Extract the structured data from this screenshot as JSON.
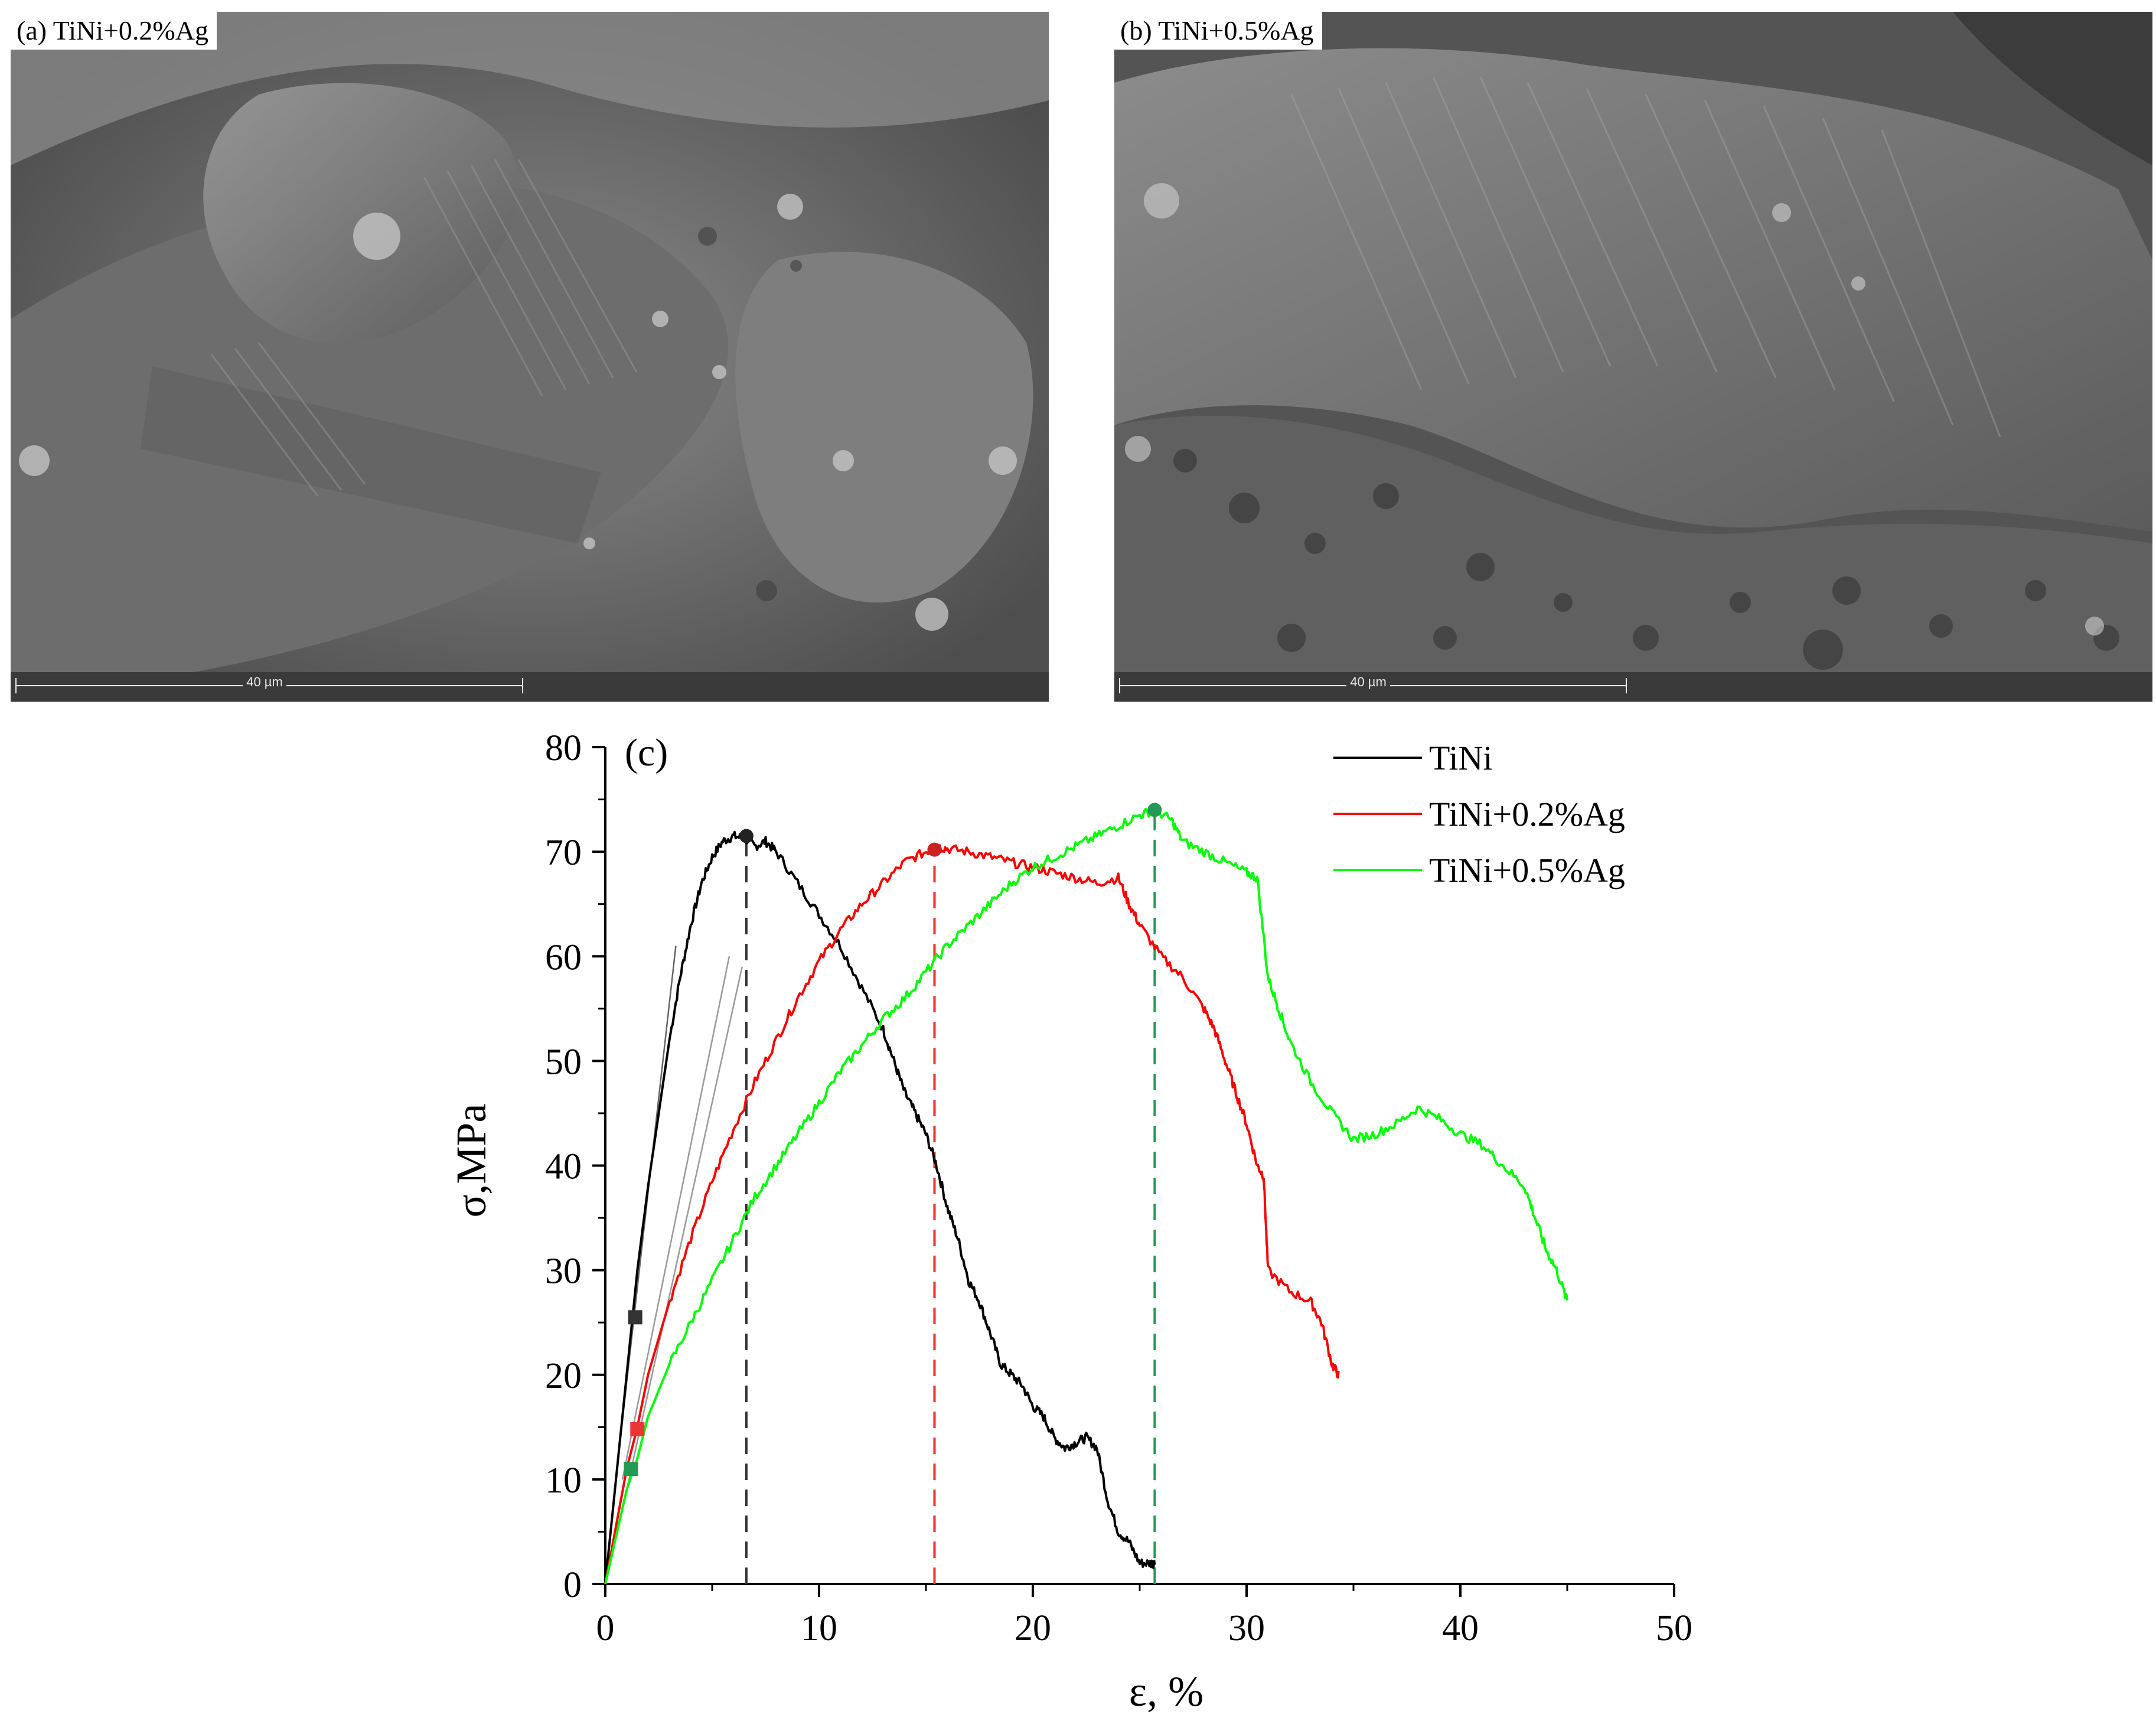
{
  "figure": {
    "panel_a": {
      "label": "(a) TiNi+0.2%Ag",
      "scale_text": "40 µm"
    },
    "panel_b": {
      "label": "(b) TiNi+0.5%Ag",
      "scale_text": "40 µm"
    }
  },
  "chart_data": {
    "type": "line",
    "panel_label": "(c)",
    "xlabel": "ε, %",
    "ylabel": "σ,MPa",
    "xlim": [
      0,
      50
    ],
    "ylim": [
      0,
      80
    ],
    "xticks": [
      0,
      10,
      20,
      30,
      40,
      50
    ],
    "yticks": [
      0,
      10,
      20,
      30,
      40,
      50,
      60,
      70,
      80
    ],
    "legend_position": "top-right",
    "series": [
      {
        "name": "TiNi",
        "color": "#000000",
        "x": [
          0,
          0.5,
          1,
          1.5,
          2,
          2.5,
          3,
          3.5,
          4,
          4.5,
          5,
          5.5,
          6,
          6.5,
          7,
          7.5,
          8,
          9,
          10,
          11,
          12,
          13,
          13.5,
          14,
          14.5,
          15,
          15.5,
          16,
          16.5,
          17,
          17.5,
          18,
          18.5,
          19,
          19.5,
          20,
          20.5,
          21,
          21.5,
          22,
          22.5,
          23,
          23.5,
          24,
          24.5,
          25,
          25.5,
          25.7
        ],
        "y": [
          0,
          10,
          20,
          30,
          38,
          45,
          52,
          58,
          63,
          67,
          69.5,
          71,
          71.5,
          71.3,
          70.5,
          71,
          70,
          67,
          64,
          61,
          57,
          53,
          50,
          47,
          45,
          43,
          40,
          36,
          33,
          29,
          27,
          24,
          21,
          20,
          19,
          17,
          16,
          14,
          13,
          13.5,
          14,
          13,
          8,
          5,
          4,
          2,
          2,
          2
        ]
      },
      {
        "name": "TiNi+0.2%Ag",
        "color": "#ff0000",
        "x": [
          0,
          1,
          1.5,
          2,
          3,
          4,
          5,
          6,
          7,
          8,
          9,
          10,
          11,
          12,
          13,
          14,
          15,
          15.5,
          16,
          17,
          18,
          19,
          20,
          21,
          22,
          23,
          24,
          24.5,
          25,
          26,
          27,
          28,
          28.5,
          29,
          29.5,
          30,
          30.5,
          30.8,
          31,
          32,
          33,
          33.5,
          34,
          34.3
        ],
        "y": [
          0,
          11,
          15,
          20,
          27,
          33,
          38.5,
          43.5,
          48,
          52,
          56,
          59.5,
          62.5,
          65,
          67,
          69,
          70,
          70.5,
          70.3,
          70,
          69.5,
          69,
          68.5,
          68,
          67.5,
          67,
          67.5,
          65,
          63,
          60,
          58,
          55,
          53,
          50,
          47,
          44,
          40,
          39,
          30,
          28,
          27,
          25,
          21,
          20
        ]
      },
      {
        "name": "TiNi+0.5%Ag",
        "color": "#00ff00",
        "x": [
          0,
          1,
          1.5,
          2,
          3,
          4,
          5,
          6,
          7,
          8,
          9,
          10,
          11,
          12,
          13,
          14,
          15,
          16,
          17,
          18,
          19,
          20,
          21,
          22,
          23,
          24,
          25,
          25.7,
          26.5,
          27,
          28,
          29,
          30,
          30.5,
          31,
          31.5,
          32,
          33,
          34,
          35,
          36,
          37,
          38,
          39,
          40,
          41,
          42,
          43,
          43.5,
          44,
          44.5,
          45
        ],
        "y": [
          0,
          9,
          12,
          16,
          21,
          25,
          29,
          33,
          37,
          40,
          43,
          46,
          49,
          51.5,
          54,
          56,
          58.5,
          61,
          63,
          65,
          67,
          68.5,
          69.5,
          70.5,
          71.5,
          72.5,
          73.5,
          74,
          73,
          71,
          70,
          69,
          68,
          67.5,
          58,
          55,
          52,
          48,
          45,
          42.5,
          43,
          44,
          45.5,
          44.5,
          43,
          42,
          40,
          38,
          35,
          32,
          30,
          27
        ]
      }
    ],
    "markers": [
      {
        "series": "TiNi",
        "shape": "square",
        "x": 1.4,
        "y": 25.5,
        "color": "#333333"
      },
      {
        "series": "TiNi+0.2%Ag",
        "shape": "square",
        "x": 1.5,
        "y": 14.8,
        "color": "#ee3333"
      },
      {
        "series": "TiNi+0.5%Ag",
        "shape": "square",
        "x": 1.2,
        "y": 11,
        "color": "#229955"
      },
      {
        "series": "TiNi",
        "shape": "circle",
        "x": 6.6,
        "y": 71.5,
        "color": "#222222"
      },
      {
        "series": "TiNi+0.2%Ag",
        "shape": "circle",
        "x": 15.4,
        "y": 70.2,
        "color": "#cc2222"
      },
      {
        "series": "TiNi+0.5%Ag",
        "shape": "circle",
        "x": 25.7,
        "y": 74,
        "color": "#229955"
      }
    ],
    "vlines": [
      {
        "x": 6.6,
        "y_top": 71.5,
        "color": "#333333"
      },
      {
        "x": 15.4,
        "y_top": 70.2,
        "color": "#ee3333"
      },
      {
        "x": 25.7,
        "y_top": 74,
        "color": "#229955"
      }
    ],
    "tangent_lines": [
      {
        "x": [
          0.6,
          3.3
        ],
        "y": [
          12,
          61
        ],
        "color": "#666666"
      },
      {
        "x": [
          0.8,
          5.8
        ],
        "y": [
          10,
          60
        ],
        "color": "#999999"
      },
      {
        "x": [
          1.0,
          6.4
        ],
        "y": [
          9,
          59
        ],
        "color": "#999999"
      }
    ]
  }
}
